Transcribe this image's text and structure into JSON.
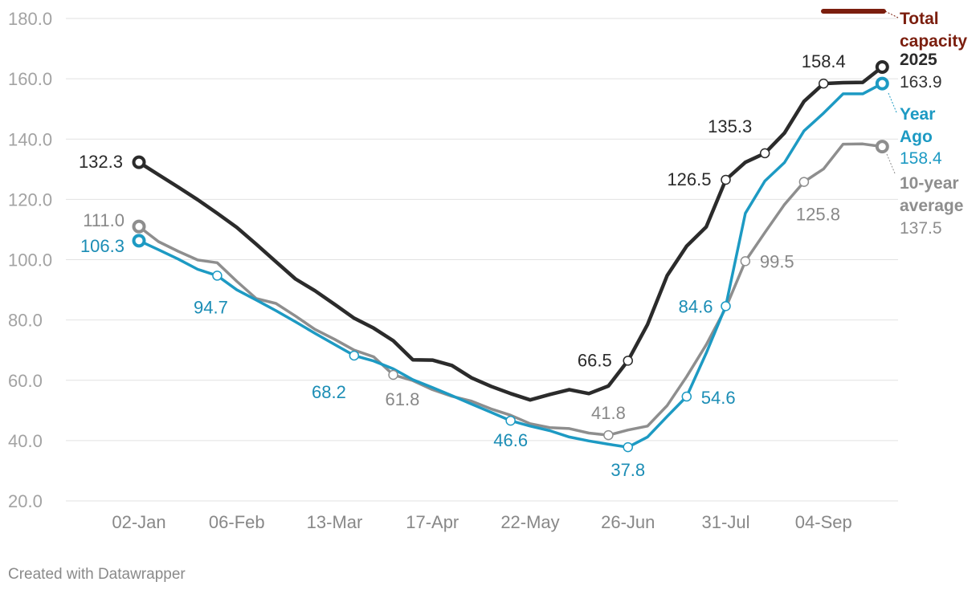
{
  "chart_data": {
    "type": "line",
    "ylim": [
      20,
      180
    ],
    "y_ticks": [
      "20.0",
      "40.0",
      "60.0",
      "80.0",
      "100.0",
      "120.0",
      "140.0",
      "160.0",
      "180.0"
    ],
    "x_ticks": [
      "02-Jan",
      "06-Feb",
      "13-Mar",
      "17-Apr",
      "22-May",
      "26-Jun",
      "31-Jul",
      "04-Sep"
    ],
    "grid": true,
    "legend_placement": "right-end",
    "capacity": {
      "name": "Total capacity",
      "color": "#7b1e0e"
    },
    "series": [
      {
        "name": "2025",
        "color": "#2b2b2b",
        "last_value": "163.9",
        "values": [
          132.3,
          128.2,
          124.1,
          119.9,
          115.4,
          110.7,
          105.1,
          99.3,
          93.6,
          89.7,
          85.2,
          80.6,
          77.3,
          73.1,
          66.8,
          66.7,
          64.9,
          60.8,
          58.0,
          55.6,
          53.5,
          55.3,
          56.9,
          55.6,
          58.1,
          66.5,
          78.5,
          94.7,
          104.5,
          110.9,
          126.5,
          132.3,
          135.3,
          142.0,
          152.5,
          158.4,
          158.7,
          158.8,
          163.9
        ],
        "labels": [
          {
            "i": 0,
            "text": "132.3"
          },
          {
            "i": 25,
            "text": "66.5"
          },
          {
            "i": 30,
            "text": "126.5"
          },
          {
            "i": 32,
            "text": "135.3"
          },
          {
            "i": 35,
            "text": "158.4"
          }
        ]
      },
      {
        "name": "Year Ago",
        "color": "#1d9ac3",
        "last_value": "158.4",
        "values": [
          106.3,
          103.3,
          100.2,
          96.8,
          94.7,
          90.0,
          86.6,
          83.1,
          79.4,
          75.6,
          71.9,
          68.2,
          66.4,
          63.8,
          60.2,
          57.6,
          54.9,
          52.1,
          49.4,
          46.6,
          44.8,
          43.3,
          41.2,
          39.9,
          38.8,
          37.8,
          41.2,
          48.0,
          54.6,
          69.0,
          84.6,
          115.4,
          126.1,
          132.2,
          142.7,
          148.6,
          155.0,
          155.0,
          158.4
        ],
        "labels": [
          {
            "i": 0,
            "text": "106.3"
          },
          {
            "i": 4,
            "text": "94.7"
          },
          {
            "i": 11,
            "text": "68.2"
          },
          {
            "i": 19,
            "text": "46.6"
          },
          {
            "i": 25,
            "text": "37.8"
          },
          {
            "i": 28,
            "text": "54.6"
          },
          {
            "i": 30,
            "text": "84.6"
          }
        ]
      },
      {
        "name": "10-year average",
        "color": "#8e8e8e",
        "last_value": "137.5",
        "values": [
          111.0,
          106.0,
          102.8,
          99.9,
          99.0,
          92.8,
          87.1,
          85.5,
          81.3,
          76.9,
          73.6,
          70.0,
          67.8,
          61.8,
          59.9,
          56.9,
          54.7,
          53.1,
          50.5,
          48.4,
          45.6,
          44.3,
          44.0,
          42.5,
          41.8,
          43.5,
          44.8,
          51.6,
          61.2,
          71.8,
          84.0,
          99.5,
          109.0,
          118.3,
          125.8,
          130.1,
          138.3,
          138.4,
          137.5
        ],
        "labels": [
          {
            "i": 0,
            "text": "111.0"
          },
          {
            "i": 13,
            "text": "61.8"
          },
          {
            "i": 24,
            "text": "41.8"
          },
          {
            "i": 31,
            "text": "99.5"
          },
          {
            "i": 34,
            "text": "125.8"
          }
        ]
      }
    ]
  },
  "credit": "Created with Datawrapper"
}
